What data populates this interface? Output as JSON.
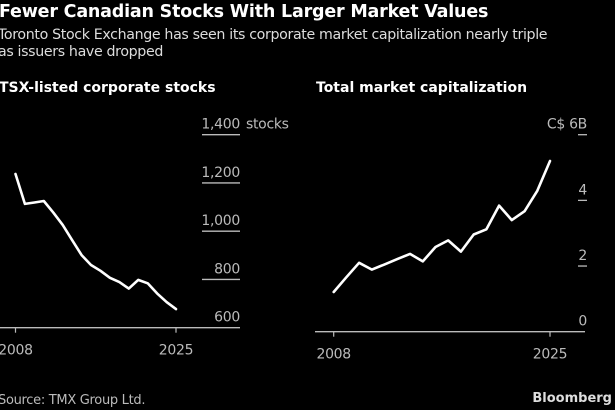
{
  "title": "Fewer Canadian Stocks With Larger Market Values",
  "subtitle_line1": "Toronto Stock Exchange has seen its corporate market capitalization nearly triple",
  "subtitle_line2": "as issuers have dropped",
  "source": "Source: TMX Group Ltd.",
  "brand": "Bloomberg",
  "colors": {
    "background": "#000000",
    "line": "#ffffff",
    "axis": "#bbbbbb"
  },
  "chart_data": [
    {
      "type": "line",
      "title": "TSX-listed corporate stocks",
      "unit_label": "stocks",
      "x": [
        2008,
        2009,
        2010,
        2011,
        2012,
        2013,
        2014,
        2015,
        2016,
        2017,
        2018,
        2019,
        2020,
        2021,
        2022,
        2023,
        2024,
        2025
      ],
      "values": [
        1237,
        1113,
        1119,
        1125,
        1077,
        1026,
        963,
        901,
        860,
        836,
        807,
        789,
        762,
        798,
        784,
        742,
        706,
        677
      ],
      "x_tick_labels": [
        "2008",
        "2025"
      ],
      "y_tick_labels": [
        "1,400",
        "1,200",
        "1,000",
        "800",
        "600"
      ],
      "y_ticks": [
        1400,
        1200,
        1000,
        800,
        600
      ],
      "ylim": [
        600,
        1400
      ],
      "xlim": [
        2008,
        2025
      ],
      "grid": false,
      "y_axis_position": "right"
    },
    {
      "type": "line",
      "title": "Total market capitalization",
      "unit_label": "C$",
      "top_tick_label": "C$ 6B",
      "x": [
        2008,
        2009,
        2010,
        2011,
        2012,
        2013,
        2014,
        2015,
        2016,
        2017,
        2018,
        2019,
        2020,
        2021,
        2022,
        2023,
        2024,
        2025
      ],
      "values": [
        1.21,
        1.66,
        2.1,
        1.89,
        2.05,
        2.21,
        2.37,
        2.14,
        2.58,
        2.78,
        2.44,
        2.96,
        3.12,
        3.84,
        3.4,
        3.67,
        4.29,
        5.2
      ],
      "x_tick_labels": [
        "2008",
        "2025"
      ],
      "y_tick_labels": [
        "C$ 6B",
        "4",
        "2",
        "0"
      ],
      "y_ticks": [
        6,
        4,
        2,
        0
      ],
      "ylim": [
        0,
        6
      ],
      "xlim": [
        2008,
        2025
      ],
      "grid": false,
      "y_axis_position": "right"
    }
  ]
}
